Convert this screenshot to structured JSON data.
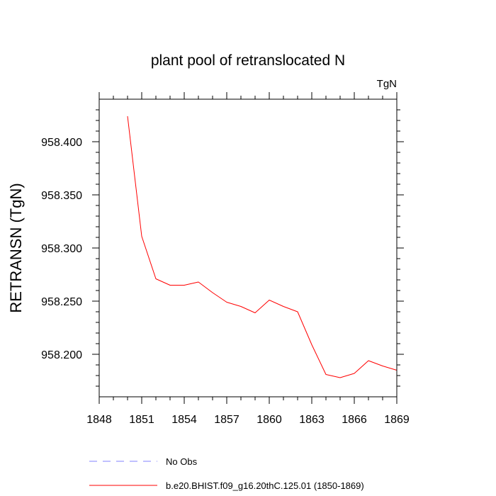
{
  "chart_data": {
    "type": "line",
    "title": "plant pool of retranslocated N",
    "units": "TgN",
    "ylabel": "RETRANSN  (TgN)",
    "xlabel": "",
    "xlim": [
      1848,
      1869
    ],
    "ylim": [
      958.16,
      958.44
    ],
    "xticks": [
      1848,
      1851,
      1854,
      1857,
      1860,
      1863,
      1866,
      1869
    ],
    "yticks": [
      958.2,
      958.25,
      958.3,
      958.35,
      958.4
    ],
    "xtick_labels": [
      "1848",
      "1851",
      "1854",
      "1857",
      "1860",
      "1863",
      "1866",
      "1869"
    ],
    "ytick_labels": [
      "958.200",
      "958.250",
      "958.300",
      "958.350",
      "958.400"
    ],
    "grid": false,
    "series": [
      {
        "name": "b.e20.BHIST.f09_g16.20thC.125.01 (1850-1869)",
        "color": "#ff0000",
        "x": [
          1850,
          1851,
          1852,
          1853,
          1854,
          1855,
          1856,
          1857,
          1858,
          1859,
          1860,
          1861,
          1862,
          1863,
          1864,
          1865,
          1866,
          1867,
          1868,
          1869
        ],
        "y": [
          958.424,
          958.311,
          958.271,
          958.265,
          958.265,
          958.268,
          958.258,
          958.249,
          958.245,
          958.239,
          958.251,
          958.245,
          958.24,
          958.209,
          958.181,
          958.178,
          958.182,
          958.194,
          958.189,
          958.185
        ]
      }
    ],
    "legend": {
      "position": "bottom",
      "entries": [
        {
          "label": "No Obs",
          "color": "#8080ff",
          "style": "dashed"
        },
        {
          "label": "b.e20.BHIST.f09_g16.20thC.125.01 (1850-1869)",
          "color": "#ff0000",
          "style": "solid"
        }
      ]
    }
  }
}
